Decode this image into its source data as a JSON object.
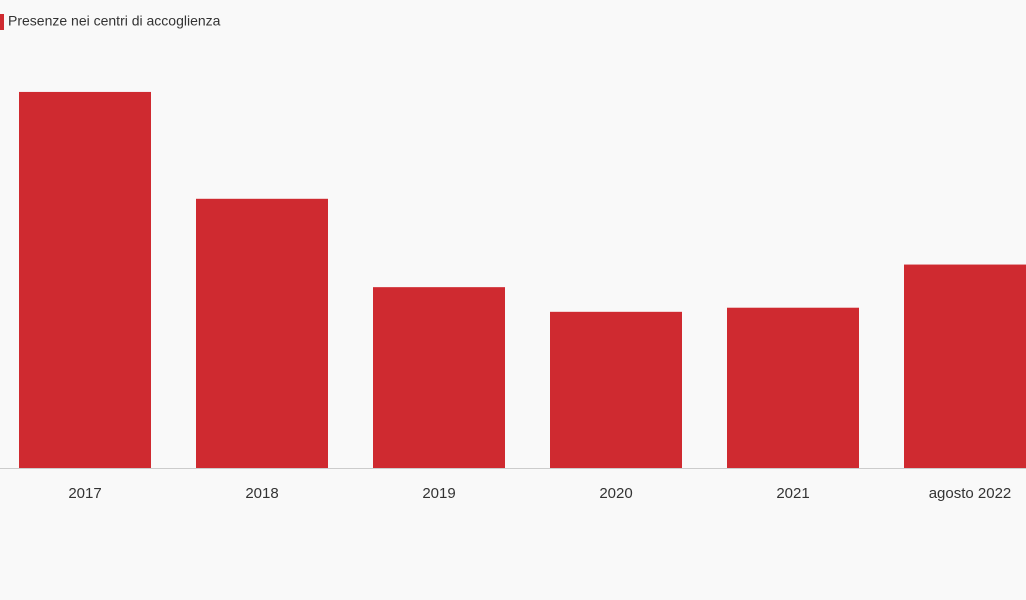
{
  "chart_data": {
    "type": "bar",
    "categories": [
      "2017",
      "2018",
      "2019",
      "2020",
      "2021",
      "agosto 2022"
    ],
    "series": [
      {
        "name": "Presenze nei centri di accoglienza",
        "color": "#cf2a30",
        "values": [
          183000,
          131000,
          88000,
          76000,
          78000,
          99000
        ]
      }
    ],
    "ylim": [
      0,
      200000
    ],
    "legend": "top-left"
  }
}
